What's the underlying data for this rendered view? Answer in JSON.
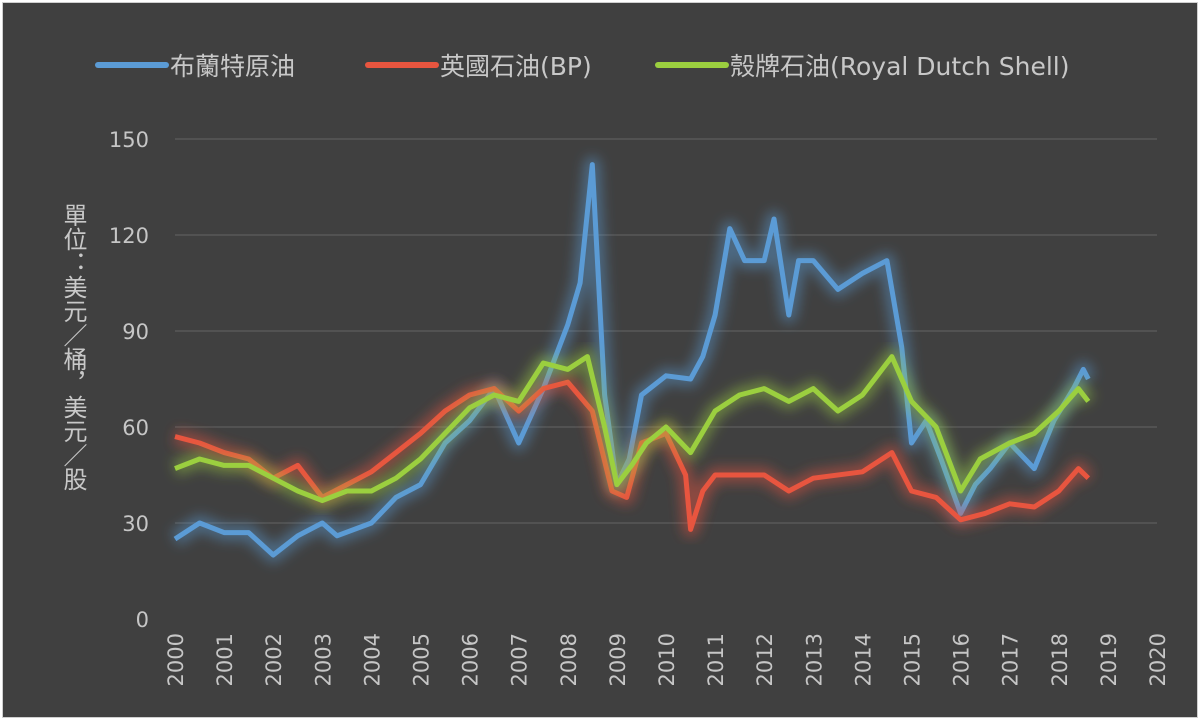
{
  "chart_data": {
    "type": "line",
    "title": "",
    "xlabel": "",
    "ylabel": "單位：美元／桶，美元／股",
    "xlim": [
      2000,
      2020
    ],
    "ylim": [
      0,
      150
    ],
    "xticks": [
      "2000",
      "2001",
      "2002",
      "2003",
      "2004",
      "2005",
      "2006",
      "2007",
      "2008",
      "2009",
      "2010",
      "2011",
      "2012",
      "2013",
      "2014",
      "2015",
      "2016",
      "2017",
      "2018",
      "2019",
      "2020"
    ],
    "yticks": [
      "0",
      "30",
      "60",
      "90",
      "120",
      "150"
    ],
    "grid": true,
    "legend": "top",
    "series": [
      {
        "name": "布蘭特原油",
        "color": "#5b9bd5",
        "x": [
          2000,
          2000.5,
          2001,
          2001.5,
          2002,
          2002.5,
          2003,
          2003.3,
          2004,
          2004.5,
          2005,
          2005.5,
          2006,
          2006.5,
          2007,
          2007.5,
          2008,
          2008.25,
          2008.5,
          2008.75,
          2009,
          2009.25,
          2009.5,
          2010,
          2010.5,
          2010.75,
          2011,
          2011.3,
          2011.6,
          2012,
          2012.2,
          2012.5,
          2012.7,
          2013,
          2013.5,
          2014,
          2014.5,
          2014.8,
          2015,
          2015.3,
          2015.6,
          2016,
          2016.3,
          2016.6,
          2017,
          2017.5,
          2017.9,
          2018.3,
          2018.5,
          2018.6
        ],
        "y": [
          25,
          30,
          27,
          27,
          20,
          26,
          30,
          26,
          30,
          38,
          42,
          55,
          62,
          72,
          55,
          72,
          92,
          105,
          142,
          70,
          42,
          50,
          70,
          76,
          75,
          82,
          95,
          122,
          112,
          112,
          125,
          95,
          112,
          112,
          103,
          108,
          112,
          85,
          55,
          62,
          50,
          33,
          42,
          47,
          55,
          47,
          62,
          72,
          78,
          75
        ]
      },
      {
        "name": "英國石油(BP)",
        "color": "#e8553f",
        "x": [
          2000,
          2000.5,
          2001,
          2001.5,
          2002,
          2002.5,
          2003,
          2003.5,
          2004,
          2004.5,
          2005,
          2005.5,
          2006,
          2006.5,
          2007,
          2007.5,
          2008,
          2008.5,
          2008.9,
          2009.2,
          2009.5,
          2010,
          2010.4,
          2010.5,
          2010.75,
          2011,
          2012,
          2012.5,
          2013,
          2014,
          2014.6,
          2015,
          2015.5,
          2016,
          2016.5,
          2017,
          2017.5,
          2018,
          2018.4,
          2018.6
        ],
        "y": [
          57,
          55,
          52,
          50,
          44,
          48,
          38,
          42,
          46,
          52,
          58,
          65,
          70,
          72,
          65,
          72,
          74,
          65,
          40,
          38,
          55,
          58,
          45,
          28,
          40,
          45,
          45,
          40,
          44,
          46,
          52,
          40,
          38,
          31,
          33,
          36,
          35,
          40,
          47,
          44
        ]
      },
      {
        "name": "殼牌石油(Royal Dutch Shell)",
        "color": "#9bcf3f",
        "x": [
          2000,
          2000.5,
          2001,
          2001.5,
          2002,
          2002.5,
          2003,
          2003.5,
          2004,
          2004.5,
          2005,
          2005.5,
          2006,
          2006.5,
          2007,
          2007.5,
          2008,
          2008.4,
          2008.75,
          2009,
          2009.3,
          2009.6,
          2010,
          2010.5,
          2011,
          2011.5,
          2012,
          2012.5,
          2013,
          2013.5,
          2014,
          2014.6,
          2015,
          2015.5,
          2016,
          2016.4,
          2017,
          2017.5,
          2018,
          2018.4,
          2018.6
        ],
        "y": [
          47,
          50,
          48,
          48,
          44,
          40,
          37,
          40,
          40,
          44,
          50,
          58,
          66,
          70,
          68,
          80,
          78,
          82,
          60,
          42,
          48,
          55,
          60,
          52,
          65,
          70,
          72,
          68,
          72,
          65,
          70,
          82,
          68,
          60,
          40,
          50,
          55,
          58,
          65,
          72,
          68
        ]
      }
    ]
  }
}
